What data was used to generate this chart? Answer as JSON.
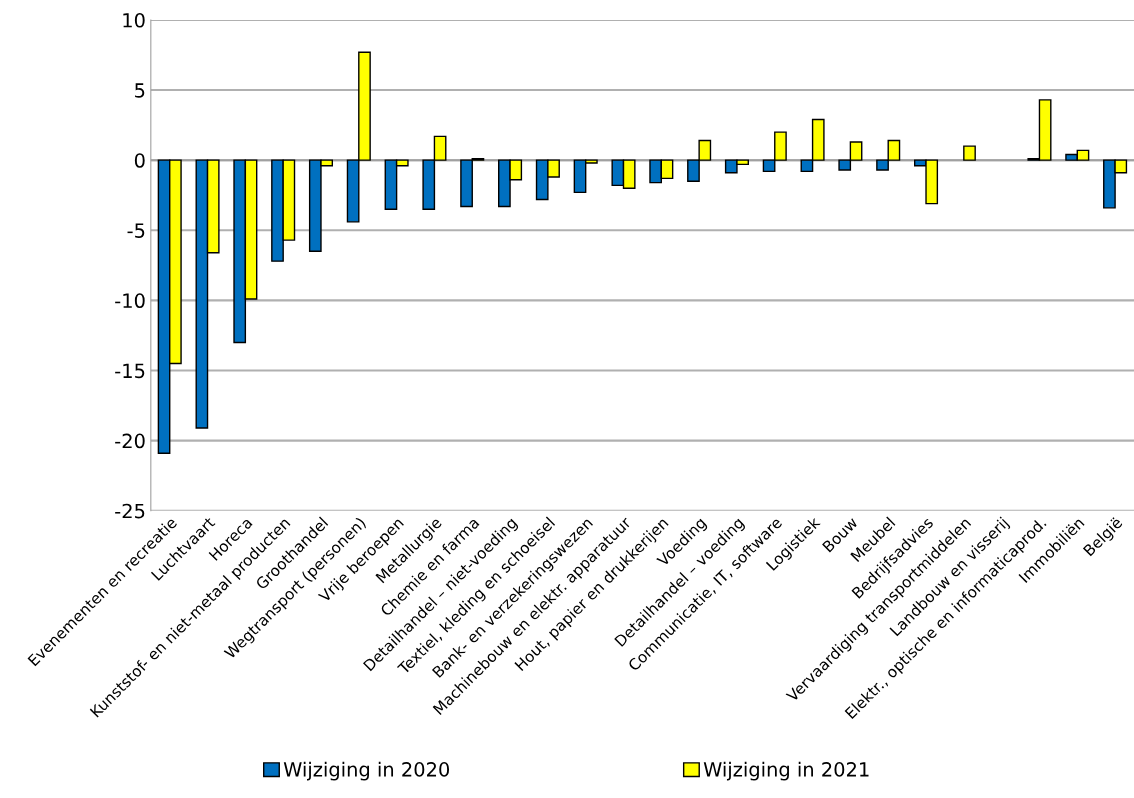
{
  "chart_data": {
    "type": "bar",
    "categories": [
      "Evenementen en recreatie",
      "Luchtvaart",
      "Horeca",
      "Kunststof- en niet-metaal producten",
      "Groothandel",
      "Wegtransport (personen)",
      "Vrije beroepen",
      "Metallurgie",
      "Chemie en farma",
      "Detailhandel – niet-voeding",
      "Textiel, kleding en schoeisel",
      "Bank- en verzekeringswezen",
      "Machinebouw en elektr. apparatuur",
      "Hout, papier en drukkerijen",
      "Voeding",
      "Detailhandel – voeding",
      "Communicatie, IT, software",
      "Logistiek",
      "Bouw",
      "Meubel",
      "Bedrijfsadvies",
      "Vervaardiging transportmiddelen",
      "Landbouw en visserij",
      "Elektr., optische en informaticaprod.",
      "Immobiliën",
      "België"
    ],
    "series": [
      {
        "name": "Wijziging in 2020",
        "color": "#0070c0",
        "values": [
          -20.9,
          -19.1,
          -13.0,
          -7.2,
          -6.5,
          -4.4,
          -3.5,
          -3.5,
          -3.3,
          -3.3,
          -2.8,
          -2.3,
          -1.8,
          -1.6,
          -1.5,
          -0.9,
          -0.8,
          -0.8,
          -0.7,
          -0.7,
          -0.4,
          null,
          null,
          0.1,
          0.4,
          -3.4
        ]
      },
      {
        "name": "Wijziging in 2021",
        "color": "#ffff00",
        "values": [
          -14.5,
          -6.6,
          -9.9,
          -5.7,
          -0.4,
          7.7,
          -0.4,
          1.7,
          0.1,
          -1.4,
          -1.2,
          -0.2,
          -2.0,
          -1.3,
          1.4,
          -0.3,
          2.0,
          2.9,
          1.3,
          1.4,
          -3.1,
          1.0,
          null,
          4.3,
          0.7,
          -0.9
        ]
      }
    ],
    "ylim": [
      -25,
      10
    ],
    "yticks": [
      -25,
      -20,
      -15,
      -10,
      -5,
      0,
      5,
      10
    ],
    "grid": "y",
    "legend": "bottom"
  }
}
